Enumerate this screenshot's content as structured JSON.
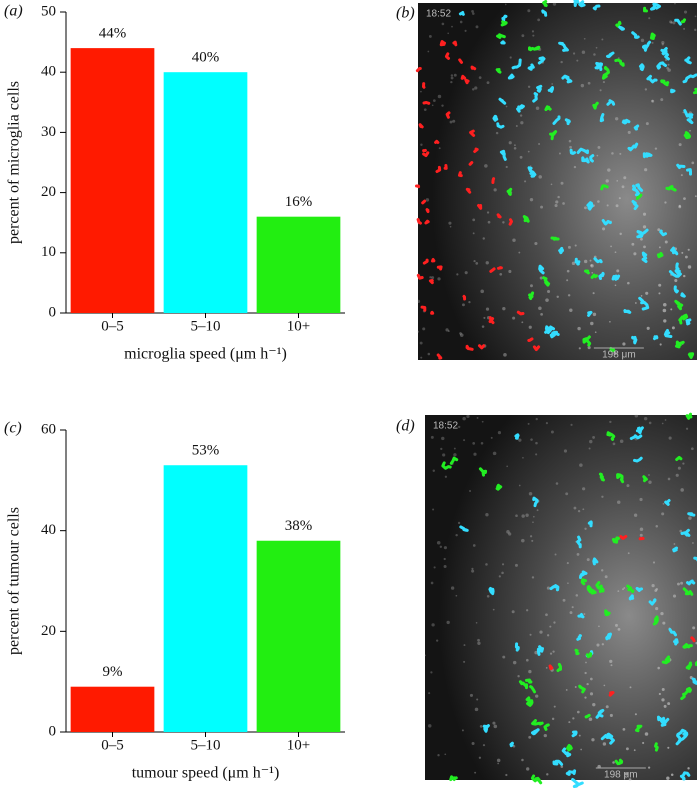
{
  "chart_data": [
    {
      "type": "bar",
      "panel_label": "(a)",
      "ylabel": "percent of microglia cells",
      "xlabel": "microglia speed (μm h⁻¹)",
      "categories": [
        "0–5",
        "5–10",
        "10+"
      ],
      "values": [
        44,
        40,
        16
      ],
      "value_labels": [
        "44%",
        "40%",
        "16%"
      ],
      "colors": [
        "#ff1a00",
        "#00ffff",
        "#22ee11"
      ],
      "ylim": [
        0,
        50
      ],
      "yticks": [
        0,
        10,
        20,
        30,
        40,
        50
      ],
      "grid": false
    },
    {
      "type": "bar",
      "panel_label": "(c)",
      "ylabel": "percent of tumour cells",
      "xlabel": "tumour speed (μm h⁻¹)",
      "categories": [
        "0–5",
        "5–10",
        "10+"
      ],
      "values": [
        9,
        53,
        38
      ],
      "value_labels": [
        "9%",
        "53%",
        "38%"
      ],
      "colors": [
        "#ff1a00",
        "#00ffff",
        "#22ee11"
      ],
      "ylim": [
        0,
        60
      ],
      "yticks": [
        0,
        20,
        40,
        60
      ],
      "grid": false
    }
  ],
  "images": [
    {
      "panel_label": "(b)",
      "timestamp": "18:52",
      "scale_bar": "198 μm"
    },
    {
      "panel_label": "(d)",
      "timestamp": "18:52",
      "scale_bar": "198 μm"
    }
  ]
}
